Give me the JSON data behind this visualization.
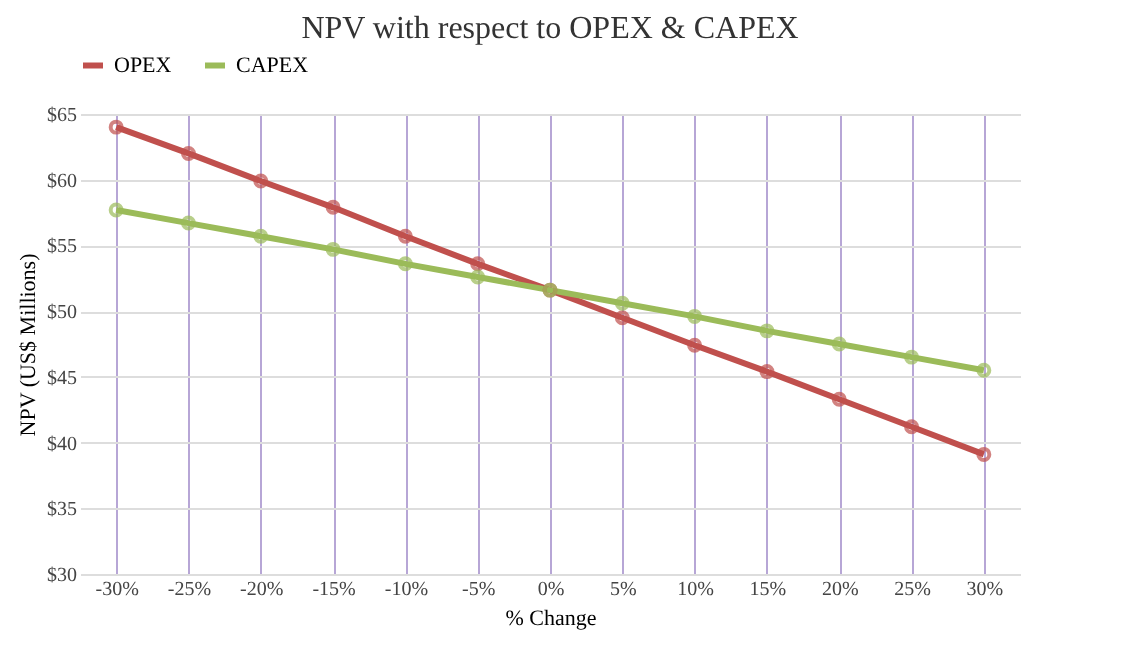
{
  "chart_data": {
    "type": "line",
    "title": "NPV with respect to OPEX & CAPEX",
    "xlabel": "% Change",
    "ylabel": "NPV (US$ Millions)",
    "categories": [
      "-30%",
      "-25%",
      "-20%",
      "-15%",
      "-10%",
      "-5%",
      "0%",
      "5%",
      "10%",
      "15%",
      "20%",
      "25%",
      "30%"
    ],
    "series": [
      {
        "name": "OPEX",
        "color": "#c0504d",
        "values": [
          64.0,
          62.0,
          59.9,
          57.9,
          55.7,
          53.6,
          51.6,
          49.5,
          47.4,
          45.4,
          43.3,
          41.2,
          39.1
        ]
      },
      {
        "name": "CAPEX",
        "color": "#9bbb59",
        "values": [
          57.7,
          56.7,
          55.7,
          54.7,
          53.6,
          52.6,
          51.6,
          50.6,
          49.6,
          48.5,
          47.5,
          46.5,
          45.5
        ]
      }
    ],
    "ylim": [
      30,
      65
    ],
    "yticks": [
      {
        "value": 30,
        "label": "$30"
      },
      {
        "value": 35,
        "label": "$35"
      },
      {
        "value": 40,
        "label": "$40"
      },
      {
        "value": 45,
        "label": "$45"
      },
      {
        "value": 50,
        "label": "$50"
      },
      {
        "value": 55,
        "label": "$55"
      },
      {
        "value": 60,
        "label": "$60"
      },
      {
        "value": 65,
        "label": "$65"
      }
    ],
    "grid": true,
    "legend": "top",
    "marker": "circle",
    "line_style": "solid"
  }
}
